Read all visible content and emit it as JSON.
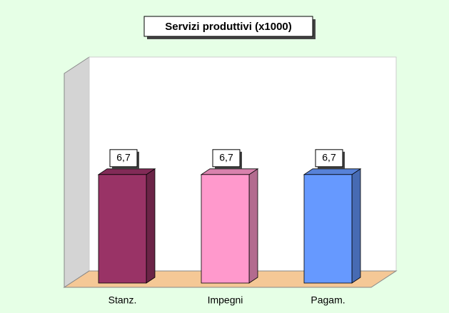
{
  "chart_data": {
    "type": "bar3d",
    "title": "Servizi produttivi (x1000)",
    "categories": [
      "Stanz.",
      "Impegni",
      "Pagam."
    ],
    "values": [
      6.7,
      6.7,
      6.7
    ],
    "value_labels": [
      "6,7",
      "6,7",
      "6,7"
    ],
    "colors": [
      "#993366",
      "#ff99cc",
      "#6699ff"
    ],
    "ylim": [
      0,
      14
    ]
  }
}
